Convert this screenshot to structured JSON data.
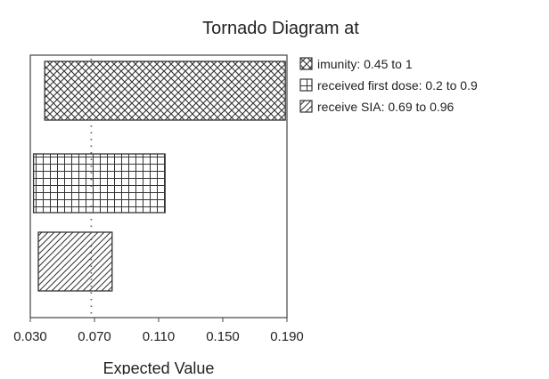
{
  "chart_data": {
    "type": "bar",
    "orientation": "horizontal",
    "title": "Tornado Diagram at",
    "xlabel": "Expected Value",
    "ylabel": "",
    "xlim": [
      0.03,
      0.19
    ],
    "x_ticks": [
      "0.030",
      "0.070",
      "0.110",
      "0.150",
      "0.190"
    ],
    "base_value": 0.068,
    "grid": false,
    "legend_position": "right",
    "bars": [
      {
        "name": "imunity: 0.45 to 1",
        "pattern": "crosshatch",
        "low": 0.039,
        "high": 0.189
      },
      {
        "name": "received first dose: 0.2 to 0.9",
        "pattern": "grid",
        "low": 0.032,
        "high": 0.114
      },
      {
        "name": "receive SIA: 0.69 to 0.96",
        "pattern": "diagonal",
        "low": 0.035,
        "high": 0.081
      }
    ]
  }
}
